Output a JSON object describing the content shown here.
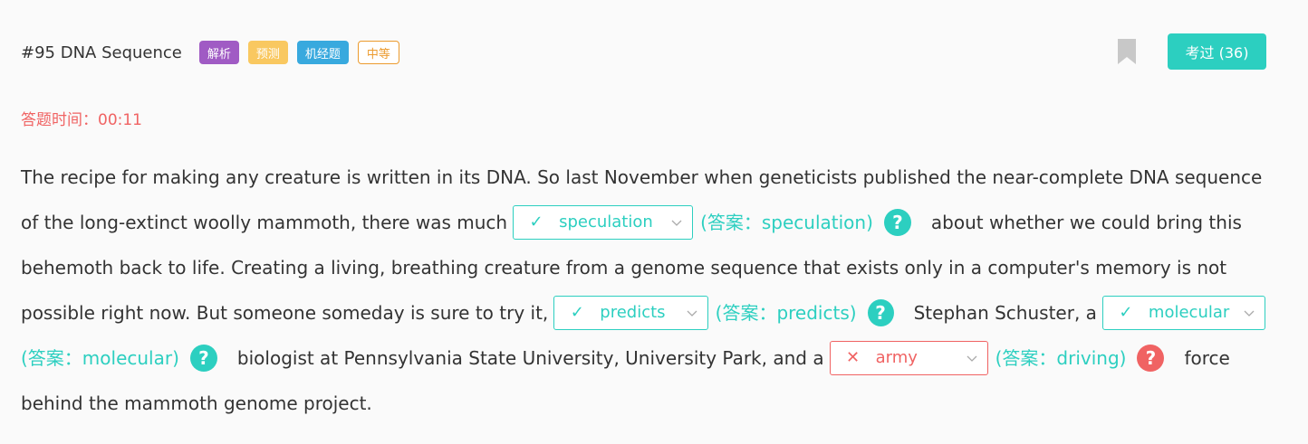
{
  "header": {
    "question_title": "#95 DNA Sequence",
    "tags": [
      "解析",
      "预测",
      "机经题",
      "中等"
    ],
    "done_button_label": "考过 (36)"
  },
  "timer": {
    "label": "答题时间：00:11"
  },
  "passage": {
    "seg1": "The recipe for making any creature is written in its DNA. So last November when geneticists published the near-complete DNA sequence",
    "seg2": "of the long-extinct woolly mammoth, there was much",
    "seg3": "about whether we could bring this",
    "seg4": "behemoth back to life. Creating a living, breathing creature from a genome sequence that exists only in a computer's memory is not",
    "seg5": "possible right now. But someone someday is sure to try it,",
    "seg6": "Stephan Schuster, a",
    "seg7": "biologist at Pennsylvania State University, University Park, and a",
    "seg8": "force",
    "seg9": "behind the mammoth genome project."
  },
  "blanks": [
    {
      "selected": "speculation",
      "answer": "(答案：speculation)",
      "status": "correct"
    },
    {
      "selected": "predicts",
      "answer": "(答案：predicts)",
      "status": "correct"
    },
    {
      "selected": "molecular",
      "answer": "(答案：molecular)",
      "status": "correct"
    },
    {
      "selected": "army",
      "answer": "(答案：driving)",
      "status": "wrong"
    }
  ],
  "icons": {
    "correct_mark": "✓",
    "wrong_mark": "✕",
    "help": "?"
  },
  "colors": {
    "accent": "#2ccfc0",
    "error": "#f06363",
    "tag_analysis": "#a05bc4",
    "tag_predict": "#f9c860",
    "tag_exam": "#38a9de",
    "tag_level": "#ec9b2e"
  }
}
